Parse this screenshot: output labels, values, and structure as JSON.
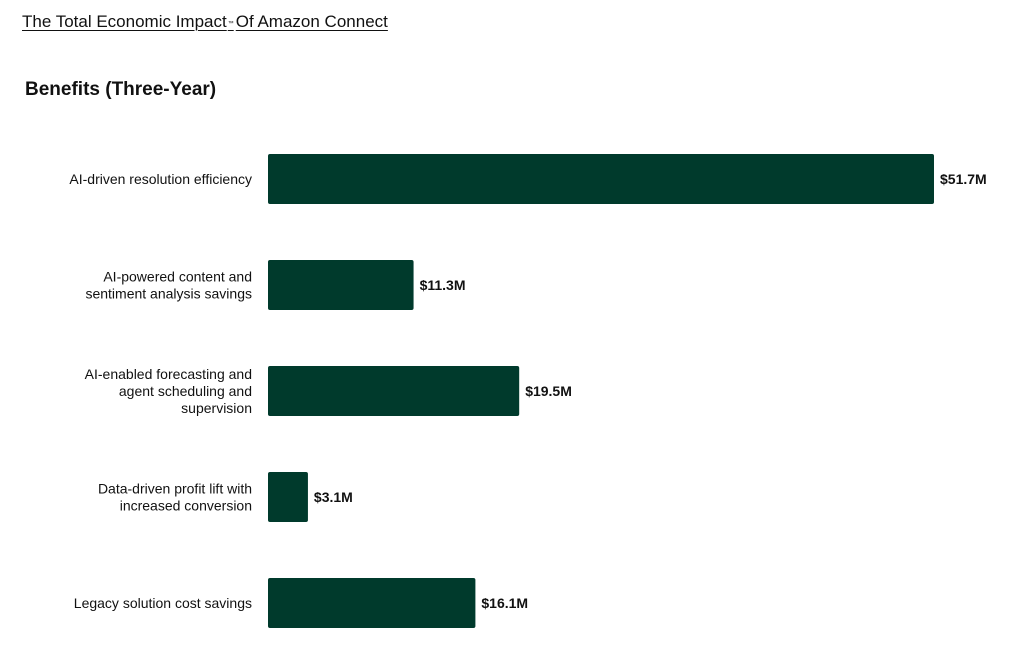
{
  "header": {
    "title_main": "The Total Economic Impact",
    "title_mark": "™",
    "title_rest": "Of Amazon Connect"
  },
  "colors": {
    "bar": "#003a2c"
  },
  "chart_data": {
    "type": "bar",
    "orientation": "horizontal",
    "title": "Benefits (Three-Year)",
    "xlabel": "",
    "ylabel": "",
    "grid": false,
    "legend": "none",
    "xlim": [
      0,
      51.7
    ],
    "categories": [
      [
        "AI-driven resolution efficiency"
      ],
      [
        "AI-powered content and",
        "sentiment analysis savings"
      ],
      [
        "AI-enabled forecasting and",
        "agent scheduling and",
        "supervision"
      ],
      [
        "Data-driven profit lift with",
        "increased conversion"
      ],
      [
        "Legacy solution cost savings"
      ]
    ],
    "values": [
      51.7,
      11.3,
      19.5,
      3.1,
      16.1
    ],
    "value_labels": [
      "$51.7M",
      "$11.3M",
      "$19.5M",
      "$3.1M",
      "$16.1M"
    ],
    "unit": "$M"
  }
}
